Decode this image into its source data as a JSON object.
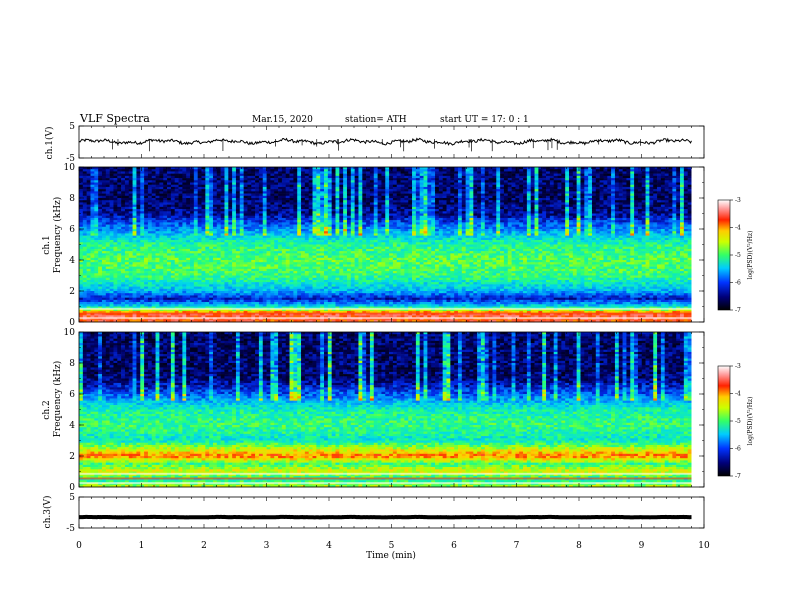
{
  "header": {
    "title": "VLF  Spectra",
    "date": "Mar.15, 2020",
    "station": "station= ATH",
    "start": "start  UT  =    17: 0   : 1"
  },
  "chart_data": {
    "type": "heatmap",
    "x": {
      "label": "Time  (min)",
      "range": [
        0,
        10
      ],
      "ticks": [
        "0",
        "1",
        "2",
        "3",
        "4",
        "5",
        "6",
        "7",
        "8",
        "9",
        "10"
      ],
      "data_end": 9.8
    },
    "panels": [
      {
        "id": "ch1-waveform",
        "type": "line",
        "ylabel": "ch.1(V)",
        "ylim": [
          -5,
          5
        ],
        "yticks": [
          "5",
          "-5"
        ],
        "mean": 0.1,
        "amplitude": 0.8
      },
      {
        "id": "ch1-spectrogram",
        "type": "heatmap",
        "ylabel_top": "ch.1",
        "ylabel": "Frequency  (kHz)",
        "ylim": [
          0,
          10
        ],
        "yticks": [
          "0",
          "2",
          "4",
          "6",
          "8",
          "10"
        ],
        "colorbar": {
          "label": "log(PSD)(V²/Hz)",
          "ticks": [
            "-3",
            "-4",
            "-5",
            "-6",
            "-7"
          ],
          "range": [
            -7,
            -3
          ]
        },
        "levels_by_khz": [
          {
            "f": 0.0,
            "v": -3.8
          },
          {
            "f": 0.5,
            "v": -3.6
          },
          {
            "f": 1.0,
            "v": -5.4
          },
          {
            "f": 1.5,
            "v": -6.3
          },
          {
            "f": 2.0,
            "v": -5.6
          },
          {
            "f": 3.0,
            "v": -5.0
          },
          {
            "f": 4.0,
            "v": -4.9
          },
          {
            "f": 5.0,
            "v": -5.1
          },
          {
            "f": 6.0,
            "v": -5.8
          },
          {
            "f": 7.0,
            "v": -6.5
          },
          {
            "f": 8.0,
            "v": -6.6
          },
          {
            "f": 10.0,
            "v": -6.6
          }
        ]
      },
      {
        "id": "ch2-spectrogram",
        "type": "heatmap",
        "ylabel_top": "ch.2",
        "ylabel": "Frequency  (kHz)",
        "ylim": [
          0,
          10
        ],
        "yticks": [
          "0",
          "2",
          "4",
          "6",
          "8",
          "10"
        ],
        "colorbar": {
          "label": "log(PSD)(V²/Hz)",
          "ticks": [
            "-3",
            "-4",
            "-5",
            "-6",
            "-7"
          ],
          "range": [
            -7,
            -3
          ]
        },
        "levels_by_khz": [
          {
            "f": 0.0,
            "v": -4.6
          },
          {
            "f": 0.5,
            "v": -5.2
          },
          {
            "f": 1.0,
            "v": -4.4
          },
          {
            "f": 1.5,
            "v": -5.0
          },
          {
            "f": 2.0,
            "v": -3.9
          },
          {
            "f": 3.0,
            "v": -5.3
          },
          {
            "f": 4.0,
            "v": -5.0
          },
          {
            "f": 5.0,
            "v": -5.2
          },
          {
            "f": 6.0,
            "v": -6.0
          },
          {
            "f": 7.0,
            "v": -6.6
          },
          {
            "f": 8.0,
            "v": -6.6
          },
          {
            "f": 10.0,
            "v": -6.6
          }
        ]
      },
      {
        "id": "ch3-waveform",
        "type": "line",
        "ylabel": "ch.3(V)",
        "ylim": [
          -5,
          5
        ],
        "yticks": [
          "5",
          "-5"
        ],
        "mean": -1.5,
        "amplitude": 0.1
      }
    ]
  }
}
